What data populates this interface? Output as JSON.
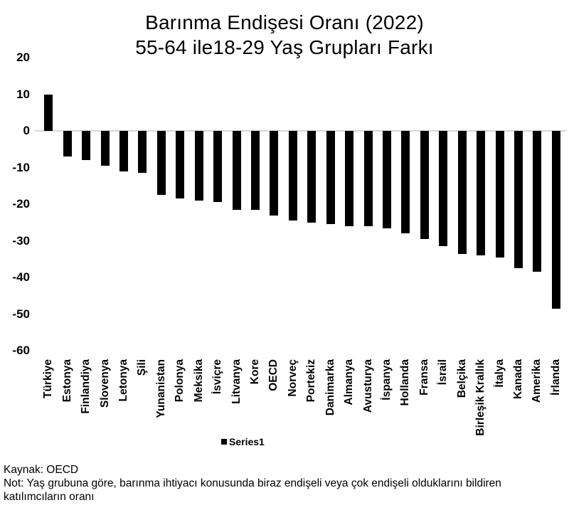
{
  "chart": {
    "title_line1": "Barınma Endişesi Oranı (2022)",
    "title_line2": "55-64 ile18-29 Yaş Grupları Farkı",
    "legend_label": "Series1"
  },
  "footer": {
    "source": "Kaynak: OECD",
    "note": "Not: Yaş grubuna göre, barınma ihtiyacı konusunda biraz endişeli veya çok endişeli olduklarını bildiren katılımcıların oranı"
  },
  "chart_data": {
    "type": "bar",
    "title": "Barınma Endişesi Oranı (2022) 55-64 ile18-29 Yaş Grupları Farkı",
    "xlabel": "",
    "ylabel": "",
    "ylim": [
      -60,
      20
    ],
    "y_ticks": [
      20,
      10,
      0,
      -10,
      -20,
      -30,
      -40,
      -50,
      -60
    ],
    "grid": "zero-line-only",
    "legend_position": "bottom",
    "legend_entries": [
      "Series1"
    ],
    "bar_color": "#000000",
    "gridline_color": "#d6d6d6",
    "categories": [
      "Türkiye",
      "Estonya",
      "Finlandiya",
      "Slovenya",
      "Letonya",
      "Şili",
      "Yunanistan",
      "Polonya",
      "Meksika",
      "İsviçre",
      "Litvanya",
      "Kore",
      "OECD",
      "Norveç",
      "Portekiz",
      "Danimarka",
      "Almanya",
      "Avusturya",
      "İspanya",
      "Hollanda",
      "Fransa",
      "İsrail",
      "Belçika",
      "Birleşik Krallık",
      "İtalya",
      "Kanada",
      "Amerika",
      "İrlanda"
    ],
    "values": [
      10,
      -7,
      -8,
      -9.5,
      -11,
      -11.5,
      -17.5,
      -18.5,
      -19,
      -19.5,
      -21.5,
      -21.5,
      -23,
      -24.5,
      -25,
      -25.5,
      -26,
      -26,
      -26.5,
      -28,
      -29.5,
      -31.5,
      -33.5,
      -34,
      -34.5,
      -37.5,
      -38.5,
      -48.5
    ]
  }
}
